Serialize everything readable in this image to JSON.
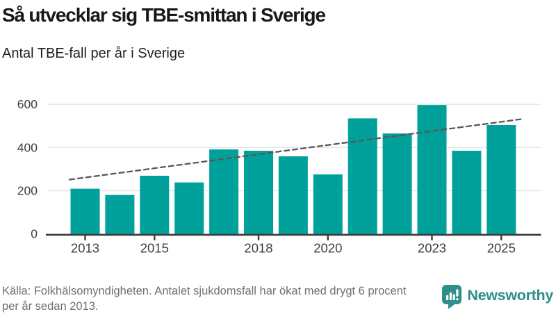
{
  "header": {
    "title": "Så utvecklar sig TBE-smittan i Sverige",
    "subtitle": "Antal TBE-fall per år i Sverige"
  },
  "chart_data": {
    "type": "bar",
    "title": "Så utvecklar sig TBE-smittan i Sverige",
    "subtitle": "Antal TBE-fall per år i Sverige",
    "categories": [
      2013,
      2014,
      2015,
      2016,
      2017,
      2018,
      2019,
      2020,
      2021,
      2022,
      2023,
      2024,
      2025
    ],
    "values": [
      209,
      180,
      269,
      238,
      391,
      385,
      359,
      275,
      535,
      465,
      597,
      385,
      504
    ],
    "x_tick_labels": [
      "2013",
      "2015",
      "2018",
      "2020",
      "2023",
      "2025"
    ],
    "y_ticks": [
      0,
      200,
      400,
      600
    ],
    "ylim": [
      0,
      640
    ],
    "grid": "horizontal",
    "legend": "none",
    "bar_color": "#00A19A",
    "trend_line": {
      "style": "dashed",
      "color": "#58585B",
      "start": {
        "year": 2012.55,
        "value": 251
      },
      "end": {
        "year": 2025.65,
        "value": 533
      }
    }
  },
  "footer": {
    "lines": [
      "Källa: Folkhälsomyndigheten. Antalet sjukdomsfall har ökat med drygt 6 procent",
      "per år sedan 2013."
    ]
  },
  "brand": {
    "name": "Newsworthy",
    "icon": "newsworthy-chart-bubble-icon",
    "color": "#2F8F8B"
  }
}
